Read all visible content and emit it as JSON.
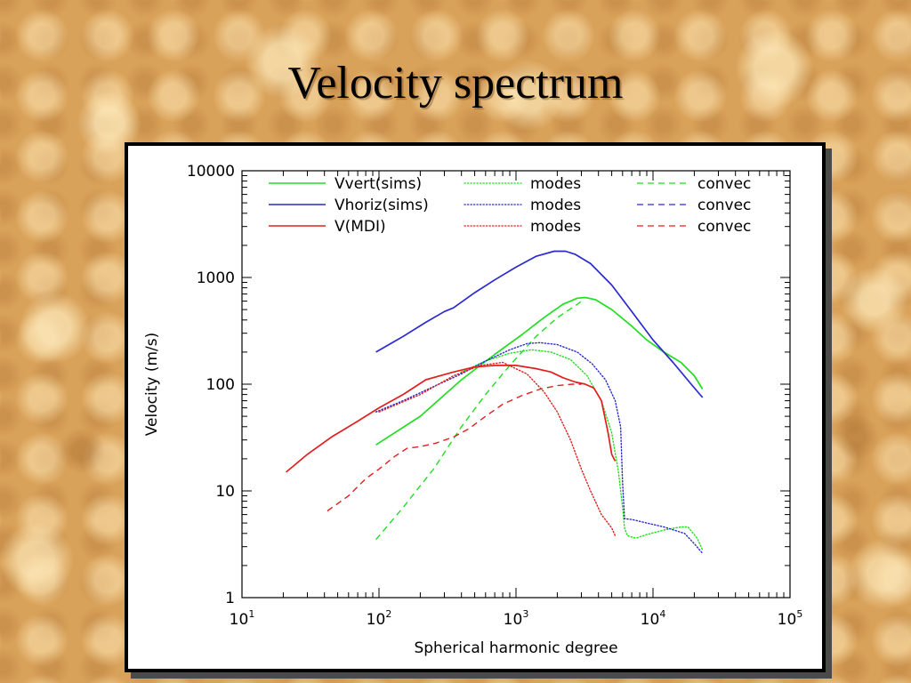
{
  "slide": {
    "title": "Velocity spectrum"
  },
  "colors": {
    "green": "#22dd22",
    "blue": "#2a2ad0",
    "red": "#e02020"
  },
  "chart_data": {
    "type": "line",
    "title": "",
    "xlabel": "Spherical harmonic degree",
    "ylabel": "Velocity (m/s)",
    "xscale": "log",
    "yscale": "log",
    "xlim": [
      10,
      100000
    ],
    "ylim": [
      1,
      10000
    ],
    "x_ticks": [
      {
        "value": 10,
        "base": "10",
        "exp": "1"
      },
      {
        "value": 100,
        "base": "10",
        "exp": "2"
      },
      {
        "value": 1000,
        "base": "10",
        "exp": "3"
      },
      {
        "value": 10000,
        "base": "10",
        "exp": "4"
      },
      {
        "value": 100000,
        "base": "10",
        "exp": "5"
      }
    ],
    "y_ticks": [
      {
        "value": 1,
        "label": "1"
      },
      {
        "value": 10,
        "label": "10"
      },
      {
        "value": 100,
        "label": "100"
      },
      {
        "value": 1000,
        "label": "1000"
      },
      {
        "value": 10000,
        "label": "10000"
      }
    ],
    "grid": false,
    "legend_position": "top",
    "legend": {
      "rows": [
        {
          "name": "Vvert(sims)",
          "color": "green",
          "modes_label": "modes",
          "convec_label": "convec"
        },
        {
          "name": "Vhoriz(sims)",
          "color": "blue",
          "modes_label": "modes",
          "convec_label": "convec"
        },
        {
          "name": "V(MDI)",
          "color": "red",
          "modes_label": "modes",
          "convec_label": "convec"
        }
      ]
    },
    "series": [
      {
        "name": "Vvert(sims)",
        "component": "total",
        "color": "green",
        "style": "solid",
        "x": [
          95,
          200,
          400,
          700,
          1100,
          1600,
          2200,
          2800,
          3200,
          3800,
          5000,
          7000,
          9000,
          12000,
          16000,
          20000,
          23000
        ],
        "y": [
          27,
          50,
          110,
          190,
          290,
          420,
          560,
          640,
          650,
          620,
          500,
          350,
          260,
          200,
          160,
          120,
          90
        ]
      },
      {
        "name": "Vvert(sims)",
        "component": "modes",
        "color": "green",
        "style": "dotted",
        "x": [
          400,
          600,
          900,
          1300,
          1800,
          2500,
          3300,
          4200,
          5000,
          5600,
          6000,
          6200,
          6500,
          7500,
          9000,
          12000,
          16000,
          18000,
          21000,
          23000
        ],
        "y": [
          130,
          165,
          195,
          210,
          200,
          170,
          120,
          70,
          35,
          15,
          7,
          4.5,
          3.8,
          3.6,
          3.9,
          4.3,
          4.6,
          4.6,
          3.6,
          2.8
        ]
      },
      {
        "name": "Vvert(sims)",
        "component": "convec",
        "color": "green",
        "style": "dashed",
        "x": [
          95,
          150,
          250,
          400,
          600,
          900,
          1400,
          2000,
          2800,
          3100
        ],
        "y": [
          3.5,
          7,
          16,
          40,
          80,
          150,
          280,
          420,
          560,
          620
        ]
      },
      {
        "name": "Vhoriz(sims)",
        "component": "total",
        "color": "blue",
        "style": "solid",
        "x": [
          95,
          150,
          220,
          300,
          350,
          500,
          700,
          1000,
          1400,
          1900,
          2300,
          2700,
          3500,
          5000,
          7000,
          10000,
          14000,
          19000,
          23000
        ],
        "y": [
          200,
          280,
          380,
          480,
          520,
          720,
          950,
          1250,
          1580,
          1760,
          1760,
          1650,
          1350,
          850,
          480,
          260,
          160,
          100,
          75
        ]
      },
      {
        "name": "Vhoriz(sims)",
        "component": "modes",
        "color": "blue",
        "style": "dotted",
        "x": [
          95,
          150,
          250,
          400,
          600,
          900,
          1200,
          1500,
          2000,
          2800,
          3600,
          4500,
          5300,
          5800,
          6000,
          6200,
          7000,
          9000,
          12000,
          17000,
          20000,
          23000
        ],
        "y": [
          55,
          70,
          95,
          125,
          165,
          210,
          240,
          245,
          235,
          200,
          155,
          110,
          70,
          40,
          12,
          5.5,
          5.4,
          5.0,
          4.6,
          4.0,
          3.2,
          2.6
        ]
      },
      {
        "name": "V(MDI)",
        "component": "total",
        "color": "red",
        "style": "solid",
        "x": [
          21,
          30,
          45,
          70,
          100,
          150,
          220,
          350,
          500,
          700,
          1000,
          1400,
          1800,
          2200,
          2700,
          3200,
          3700,
          4200,
          4700,
          5000,
          5300
        ],
        "y": [
          15,
          22,
          32,
          45,
          60,
          80,
          110,
          130,
          145,
          150,
          150,
          140,
          130,
          115,
          105,
          100,
          92,
          70,
          35,
          22,
          19
        ]
      },
      {
        "name": "V(MDI)",
        "component": "modes",
        "color": "red",
        "style": "dotted",
        "x": [
          100,
          200,
          350,
          550,
          800,
          1200,
          1600,
          2000,
          2500,
          3000,
          3500,
          4200,
          5000,
          5300
        ],
        "y": [
          55,
          80,
          120,
          150,
          160,
          125,
          85,
          55,
          30,
          16,
          10,
          6,
          4.5,
          3.8
        ]
      },
      {
        "name": "V(MDI)",
        "component": "convec",
        "color": "red",
        "style": "dashed",
        "x": [
          42,
          60,
          80,
          100,
          130,
          160,
          200,
          260,
          350,
          450,
          600,
          800,
          1100,
          1500,
          2000,
          2600,
          3000
        ],
        "y": [
          6.5,
          9,
          13,
          16,
          21,
          25,
          26,
          28,
          32,
          38,
          50,
          65,
          78,
          90,
          97,
          100,
          100
        ]
      }
    ]
  }
}
